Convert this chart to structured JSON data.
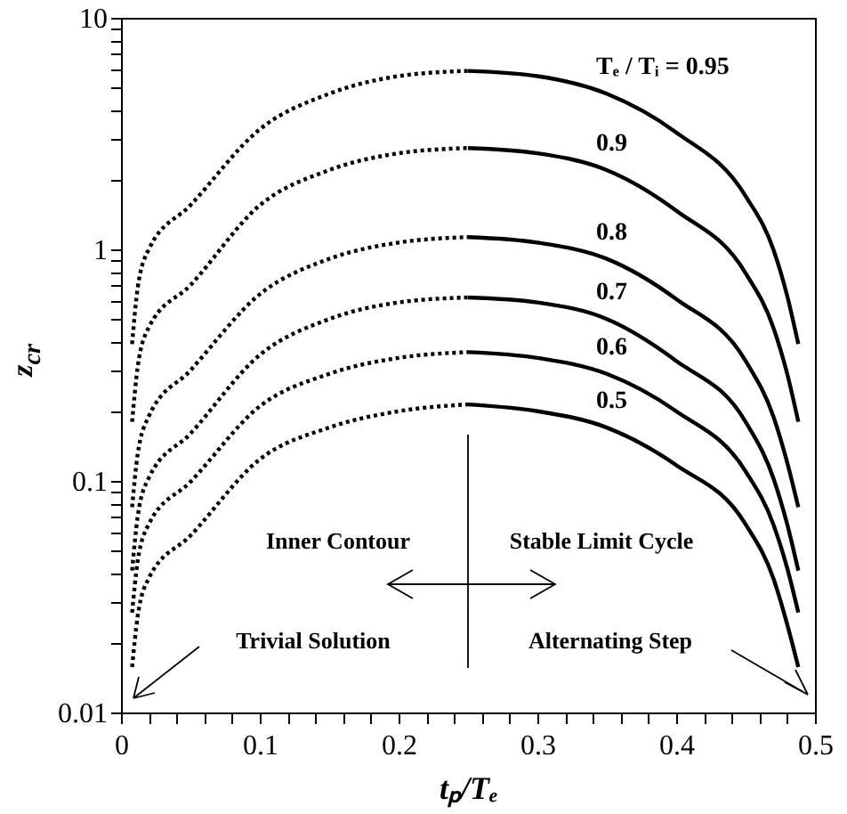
{
  "chart_data": {
    "type": "line",
    "xlabel": "tₚ/Tₑ",
    "ylabel": "z$_{cr}$",
    "log": "y",
    "xlim": [
      0,
      0.5
    ],
    "ylim": [
      0.01,
      10
    ],
    "xticks": [
      0,
      {
        "value": 0.02,
        "label": null
      },
      {
        "value": 0.04,
        "label": null
      },
      {
        "value": 0.06,
        "label": null
      },
      {
        "value": 0.08,
        "label": null
      },
      0.1,
      {
        "value": 0.12,
        "label": null
      },
      {
        "value": 0.14,
        "label": null
      },
      {
        "value": 0.16,
        "label": null
      },
      {
        "value": 0.18,
        "label": null
      },
      0.2,
      {
        "value": 0.22,
        "label": null
      },
      {
        "value": 0.24,
        "label": null
      },
      {
        "value": 0.26,
        "label": null
      },
      {
        "value": 0.28,
        "label": null
      },
      0.3,
      {
        "value": 0.32,
        "label": null
      },
      {
        "value": 0.34,
        "label": null
      },
      {
        "value": 0.36,
        "label": null
      },
      {
        "value": 0.38,
        "label": null
      },
      0.4,
      {
        "value": 0.42,
        "label": null
      },
      {
        "value": 0.44,
        "label": null
      },
      {
        "value": 0.46,
        "label": null
      },
      {
        "value": 0.48,
        "label": null
      },
      0.5
    ],
    "yticks": [
      0.01,
      {
        "value": 0.02,
        "label": null
      },
      {
        "value": 0.03,
        "label": null
      },
      {
        "value": 0.04,
        "label": null
      },
      {
        "value": 0.05,
        "label": null
      },
      {
        "value": 0.06,
        "label": null
      },
      {
        "value": 0.07,
        "label": null
      },
      {
        "value": 0.08,
        "label": null
      },
      {
        "value": 0.09,
        "label": null
      },
      0.1,
      {
        "value": 0.2,
        "label": null
      },
      {
        "value": 0.3,
        "label": null
      },
      {
        "value": 0.4,
        "label": null
      },
      {
        "value": 0.5,
        "label": null
      },
      {
        "value": 0.6,
        "label": null
      },
      {
        "value": 0.7,
        "label": null
      },
      {
        "value": 0.8,
        "label": null
      },
      {
        "value": 0.9,
        "label": null
      },
      1,
      {
        "value": 2,
        "label": null
      },
      {
        "value": 3,
        "label": null
      },
      {
        "value": 4,
        "label": null
      },
      {
        "value": 5,
        "label": null
      },
      {
        "value": 6,
        "label": null
      },
      {
        "value": 7,
        "label": null
      },
      {
        "value": 8,
        "label": null
      },
      {
        "value": 9,
        "label": null
      },
      10
    ],
    "series": [
      {
        "color": "#000000",
        "line_style": "dotted",
        "x": [
          0.008,
          0.012,
          0.02,
          0.05,
          0.1,
          0.15,
          0.2,
          0.25
        ],
        "values": [
          0.39,
          0.68,
          1.0,
          1.55,
          3.3,
          4.7,
          5.6,
          5.9
        ]
      },
      {
        "name": "Tₑ / Tᵢ = 0.95",
        "color": "#000000",
        "line_style": "solid",
        "x": [
          0.25,
          0.3,
          0.35,
          0.4,
          0.45,
          0.47,
          0.48,
          0.488
        ],
        "values": [
          5.9,
          5.6,
          4.7,
          3.2,
          1.7,
          1.0,
          0.63,
          0.39
        ]
      },
      {
        "color": "#000000",
        "line_style": "dotted",
        "x": [
          0.008,
          0.012,
          0.02,
          0.05,
          0.1,
          0.15,
          0.2,
          0.25
        ],
        "values": [
          0.18,
          0.31,
          0.46,
          0.7,
          1.55,
          2.2,
          2.6,
          2.74
        ]
      },
      {
        "name": "0.9",
        "color": "#000000",
        "line_style": "solid",
        "x": [
          0.25,
          0.3,
          0.35,
          0.4,
          0.45,
          0.47,
          0.48,
          0.488
        ],
        "values": [
          2.74,
          2.6,
          2.2,
          1.47,
          0.79,
          0.46,
          0.29,
          0.18
        ]
      },
      {
        "color": "#000000",
        "line_style": "dotted",
        "x": [
          0.008,
          0.012,
          0.02,
          0.05,
          0.1,
          0.15,
          0.2,
          0.25
        ],
        "values": [
          0.077,
          0.13,
          0.19,
          0.3,
          0.64,
          0.91,
          1.07,
          1.13
        ]
      },
      {
        "name": "0.8",
        "color": "#000000",
        "line_style": "solid",
        "x": [
          0.25,
          0.3,
          0.35,
          0.4,
          0.45,
          0.47,
          0.48,
          0.488
        ],
        "values": [
          1.13,
          1.07,
          0.91,
          0.61,
          0.33,
          0.19,
          0.12,
          0.077
        ]
      },
      {
        "color": "#000000",
        "line_style": "dotted",
        "x": [
          0.008,
          0.012,
          0.02,
          0.05,
          0.1,
          0.15,
          0.2,
          0.25
        ],
        "values": [
          0.041,
          0.07,
          0.103,
          0.16,
          0.35,
          0.5,
          0.59,
          0.62
        ]
      },
      {
        "name": "0.7",
        "color": "#000000",
        "line_style": "solid",
        "x": [
          0.25,
          0.3,
          0.35,
          0.4,
          0.45,
          0.47,
          0.48,
          0.488
        ],
        "values": [
          0.62,
          0.59,
          0.5,
          0.33,
          0.18,
          0.103,
          0.065,
          0.041
        ]
      },
      {
        "color": "#000000",
        "line_style": "dotted",
        "x": [
          0.008,
          0.012,
          0.02,
          0.05,
          0.1,
          0.15,
          0.2,
          0.25
        ],
        "values": [
          0.027,
          0.045,
          0.065,
          0.099,
          0.21,
          0.29,
          0.34,
          0.36
        ]
      },
      {
        "name": "0.6",
        "color": "#000000",
        "line_style": "solid",
        "x": [
          0.25,
          0.3,
          0.35,
          0.4,
          0.45,
          0.47,
          0.48,
          0.488
        ],
        "values": [
          0.36,
          0.34,
          0.29,
          0.2,
          0.11,
          0.065,
          0.042,
          0.027
        ]
      },
      {
        "color": "#000000",
        "line_style": "dotted",
        "x": [
          0.008,
          0.012,
          0.02,
          0.05,
          0.1,
          0.15,
          0.2,
          0.25
        ],
        "values": [
          0.0157,
          0.026,
          0.038,
          0.058,
          0.124,
          0.17,
          0.2,
          0.214
        ]
      },
      {
        "name": "0.5",
        "color": "#000000",
        "line_style": "solid",
        "x": [
          0.25,
          0.3,
          0.35,
          0.4,
          0.45,
          0.47,
          0.48,
          0.488
        ],
        "values": [
          0.214,
          0.2,
          0.17,
          0.117,
          0.065,
          0.038,
          0.024,
          0.0157
        ]
      }
    ],
    "annotations": [
      "Inner Contour",
      "Stable Limit Cycle",
      "Trivial Solution",
      "Alternating Step"
    ]
  }
}
